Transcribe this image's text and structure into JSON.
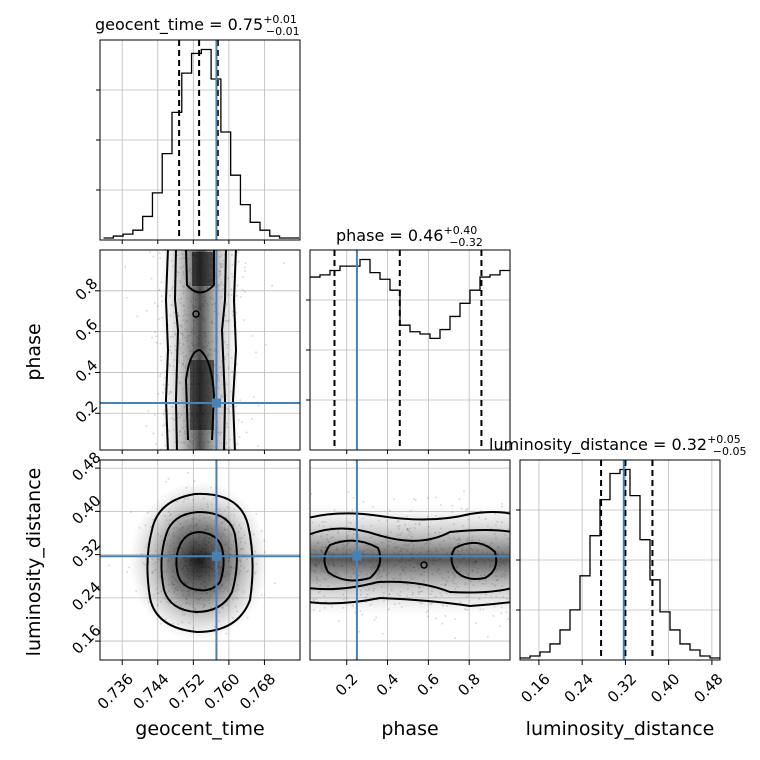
{
  "truth_color": "#4682b4",
  "chart_data": [
    {
      "panel": "geocent_time-histogram",
      "type": "histogram",
      "title_param": "geocent_time",
      "title_value": "0.75",
      "title_plus": "+0.01",
      "title_minus": "−0.01",
      "xlim": [
        0.731,
        0.776
      ],
      "quantiles": [
        0.7488,
        0.7533,
        0.7575
      ],
      "truth": 0.7572,
      "bins": [
        0.7318,
        0.734,
        0.7362,
        0.7384,
        0.7406,
        0.7428,
        0.745,
        0.7472,
        0.7494,
        0.7516,
        0.7538,
        0.756,
        0.7582,
        0.7604,
        0.7626,
        0.7648,
        0.767,
        0.7692,
        0.7714,
        0.7736,
        0.7758
      ],
      "counts": [
        1,
        2,
        3,
        5,
        12,
        24,
        44,
        65,
        85,
        95,
        97,
        82,
        55,
        33,
        18,
        9,
        5,
        2,
        1,
        1
      ],
      "grid": true
    },
    {
      "panel": "phase-histogram",
      "type": "histogram",
      "title_param": "phase",
      "title_value": "0.46",
      "title_plus": "+0.40",
      "title_minus": "−0.32",
      "xlim": [
        0.02,
        1.0
      ],
      "quantiles": [
        0.14,
        0.46,
        0.86
      ],
      "truth": 0.25,
      "bins": [
        0.02,
        0.069,
        0.118,
        0.167,
        0.216,
        0.265,
        0.314,
        0.363,
        0.412,
        0.461,
        0.51,
        0.559,
        0.608,
        0.657,
        0.706,
        0.755,
        0.804,
        0.853,
        0.902,
        0.951,
        1.0
      ],
      "counts": [
        79,
        80,
        82,
        84,
        84,
        87,
        81,
        78,
        73,
        57,
        54,
        53,
        51,
        55,
        61,
        67,
        73,
        79,
        80,
        82
      ],
      "grid": true
    },
    {
      "panel": "luminosity_distance-histogram",
      "type": "histogram",
      "title_param": "luminosity_distance",
      "title_value": "0.32",
      "title_plus": "+0.05",
      "title_minus": "−0.05",
      "xlim": [
        0.125,
        0.495
      ],
      "quantiles": [
        0.275,
        0.32,
        0.37
      ],
      "truth": 0.317,
      "bins": [
        0.125,
        0.1435,
        0.162,
        0.1805,
        0.199,
        0.2175,
        0.236,
        0.2545,
        0.273,
        0.2915,
        0.31,
        0.3285,
        0.347,
        0.3655,
        0.384,
        0.4025,
        0.421,
        0.4395,
        0.458,
        0.4765,
        0.495
      ],
      "counts": [
        1,
        2,
        4,
        8,
        15,
        25,
        42,
        62,
        80,
        93,
        95,
        82,
        60,
        40,
        24,
        15,
        8,
        5,
        2,
        1
      ],
      "grid": true
    },
    {
      "panel": "phase-vs-geocent_time",
      "type": "scatter",
      "xlabel": "",
      "ylabel": "phase",
      "xlim": [
        0.731,
        0.776
      ],
      "ylim": [
        0.02,
        1.0
      ],
      "yticks": [
        "0.2",
        "0.4",
        "0.6",
        "0.8"
      ],
      "ytick_values": [
        0.2,
        0.4,
        0.6,
        0.8
      ],
      "truth_x": 0.7572,
      "truth_y": 0.25,
      "grid": true
    },
    {
      "panel": "luminosity_distance-vs-geocent_time",
      "type": "scatter",
      "xlabel": "geocent_time",
      "ylabel": "luminosity_distance",
      "xlim": [
        0.731,
        0.776
      ],
      "ylim": [
        0.125,
        0.495
      ],
      "xticks": [
        "0.736",
        "0.744",
        "0.752",
        "0.760",
        "0.768"
      ],
      "xtick_values": [
        0.736,
        0.744,
        0.752,
        0.76,
        0.768
      ],
      "yticks": [
        "0.16",
        "0.24",
        "0.32",
        "0.40",
        "0.48"
      ],
      "ytick_values": [
        0.16,
        0.24,
        0.32,
        0.4,
        0.48
      ],
      "truth_x": 0.7572,
      "truth_y": 0.317,
      "grid": true
    },
    {
      "panel": "luminosity_distance-vs-phase",
      "type": "scatter",
      "xlabel": "phase",
      "ylabel": "",
      "xlim": [
        0.02,
        1.0
      ],
      "ylim": [
        0.125,
        0.495
      ],
      "xticks": [
        "0.2",
        "0.4",
        "0.6",
        "0.8"
      ],
      "xtick_values": [
        0.2,
        0.4,
        0.6,
        0.8
      ],
      "truth_x": 0.25,
      "truth_y": 0.317,
      "grid": true
    },
    {
      "panel": "luminosity_distance-x-axis",
      "type": "axis",
      "xlabel": "luminosity_distance",
      "xticks": [
        "0.16",
        "0.24",
        "0.32",
        "0.40",
        "0.48"
      ],
      "xtick_values": [
        0.16,
        0.24,
        0.32,
        0.4,
        0.48
      ]
    }
  ]
}
